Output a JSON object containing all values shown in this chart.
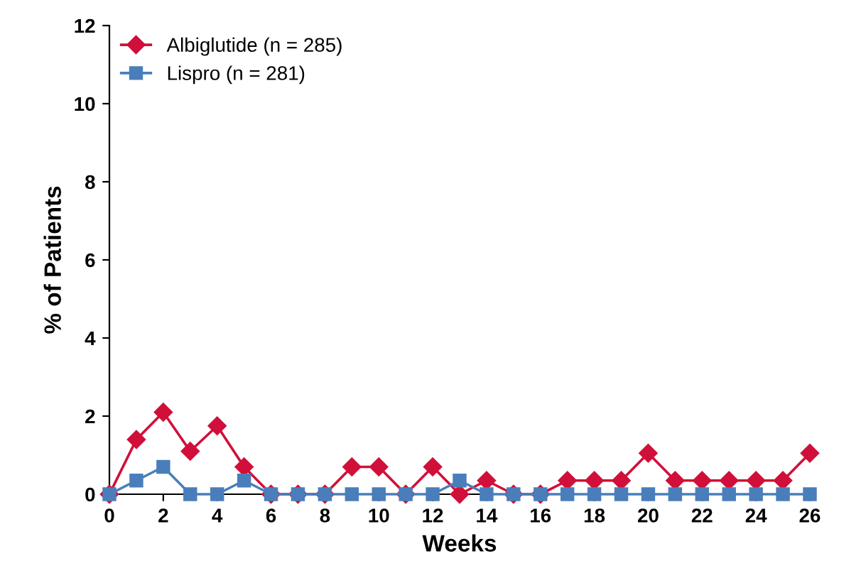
{
  "chart_data": {
    "type": "line",
    "xlabel": "Weeks",
    "ylabel": "% of Patients",
    "x": [
      0,
      1,
      2,
      3,
      4,
      5,
      6,
      7,
      8,
      9,
      10,
      11,
      12,
      13,
      14,
      15,
      16,
      17,
      18,
      19,
      20,
      21,
      22,
      23,
      24,
      25,
      26
    ],
    "series": [
      {
        "name": "Albiglutide (n = 285)",
        "color": "#d0103a",
        "marker": "diamond",
        "values": [
          0,
          1.4,
          2.1,
          1.1,
          1.75,
          0.7,
          0,
          0,
          0,
          0.7,
          0.7,
          0,
          0.7,
          0,
          0.35,
          0,
          0,
          0.35,
          0.35,
          0.35,
          1.05,
          0.35,
          0.35,
          0.35,
          0.35,
          0.35,
          1.05
        ]
      },
      {
        "name": "Lispro (n = 281)",
        "color": "#4a7ebb",
        "marker": "square",
        "values": [
          0,
          0.35,
          0.7,
          0,
          0,
          0.35,
          0,
          0,
          0,
          0,
          0,
          0,
          0,
          0.35,
          0,
          0,
          0,
          0,
          0,
          0,
          0,
          0,
          0,
          0,
          0,
          0,
          0
        ]
      }
    ],
    "xlim": [
      0,
      26
    ],
    "xticks": [
      0,
      2,
      4,
      6,
      8,
      10,
      12,
      14,
      16,
      18,
      20,
      22,
      24,
      26
    ],
    "ylim": [
      0,
      12
    ],
    "yticks": [
      0,
      2,
      4,
      6,
      8,
      10,
      12
    ],
    "grid": false,
    "legend": "top left",
    "line_style": "solid"
  }
}
